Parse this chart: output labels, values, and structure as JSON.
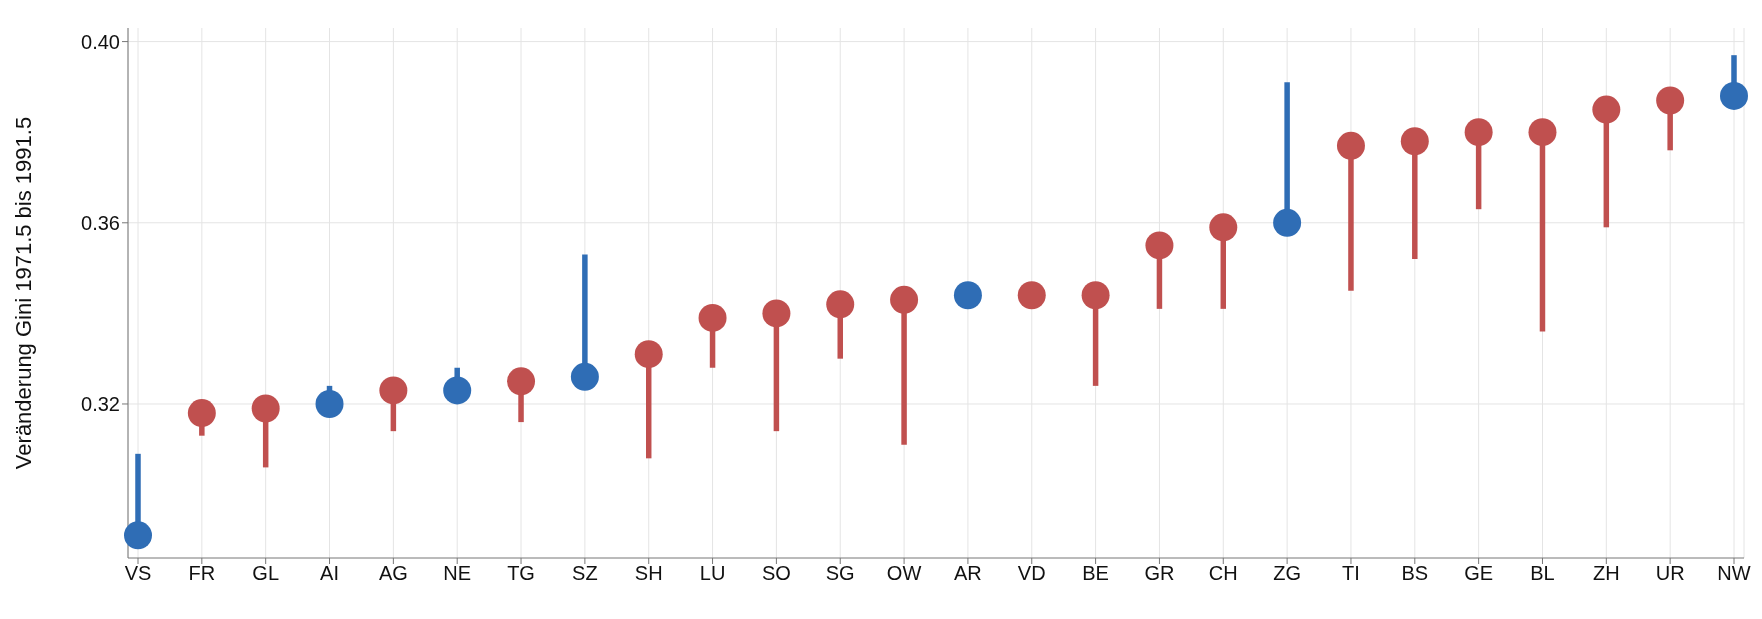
{
  "chart_data": {
    "type": "scatter",
    "ylabel": "Veränderung Gini 1971.5 bis 1991.5",
    "categories": [
      "VS",
      "FR",
      "GL",
      "AI",
      "AG",
      "NE",
      "TG",
      "SZ",
      "SH",
      "LU",
      "SO",
      "SG",
      "OW",
      "AR",
      "VD",
      "BE",
      "GR",
      "CH",
      "ZG",
      "TI",
      "BS",
      "GE",
      "BL",
      "ZH",
      "UR",
      "NW"
    ],
    "values": [
      0.291,
      0.318,
      0.319,
      0.32,
      0.323,
      0.323,
      0.325,
      0.326,
      0.331,
      0.339,
      0.34,
      0.342,
      0.343,
      0.344,
      0.344,
      0.344,
      0.355,
      0.359,
      0.36,
      0.377,
      0.378,
      0.38,
      0.38,
      0.385,
      0.387,
      0.388
    ],
    "errors": [
      [
        0.291,
        0.309
      ],
      [
        0.313,
        0.318
      ],
      [
        0.306,
        0.319
      ],
      [
        0.32,
        0.324
      ],
      [
        0.314,
        0.323
      ],
      [
        0.323,
        0.328
      ],
      [
        0.316,
        0.325
      ],
      [
        0.326,
        0.353
      ],
      [
        0.308,
        0.331
      ],
      [
        0.328,
        0.339
      ],
      [
        0.314,
        0.34
      ],
      [
        0.33,
        0.342
      ],
      [
        0.311,
        0.343
      ],
      [
        0.344,
        0.344
      ],
      [
        0.344,
        0.344
      ],
      [
        0.324,
        0.344
      ],
      [
        0.341,
        0.355
      ],
      [
        0.341,
        0.359
      ],
      [
        0.36,
        0.391
      ],
      [
        0.345,
        0.377
      ],
      [
        0.352,
        0.378
      ],
      [
        0.363,
        0.38
      ],
      [
        0.336,
        0.38
      ],
      [
        0.359,
        0.385
      ],
      [
        0.376,
        0.387
      ],
      [
        0.388,
        0.397
      ]
    ],
    "colors": [
      "#2f6db5",
      "#c0504f",
      "#c0504f",
      "#2f6db5",
      "#c0504f",
      "#2f6db5",
      "#c0504f",
      "#2f6db5",
      "#c0504f",
      "#c0504f",
      "#c0504f",
      "#c0504f",
      "#c0504f",
      "#2f6db5",
      "#c0504f",
      "#c0504f",
      "#c0504f",
      "#c0504f",
      "#2f6db5",
      "#c0504f",
      "#c0504f",
      "#c0504f",
      "#c0504f",
      "#c0504f",
      "#c0504f",
      "#2f6db5"
    ],
    "ylim": [
      0.286,
      0.403
    ],
    "yticks": [
      {
        "value": 0.32,
        "label": "0.32"
      },
      {
        "value": 0.36,
        "label": "0.36"
      },
      {
        "value": 0.4,
        "label": "0.40"
      }
    ],
    "grid": true,
    "marker": "circle"
  }
}
